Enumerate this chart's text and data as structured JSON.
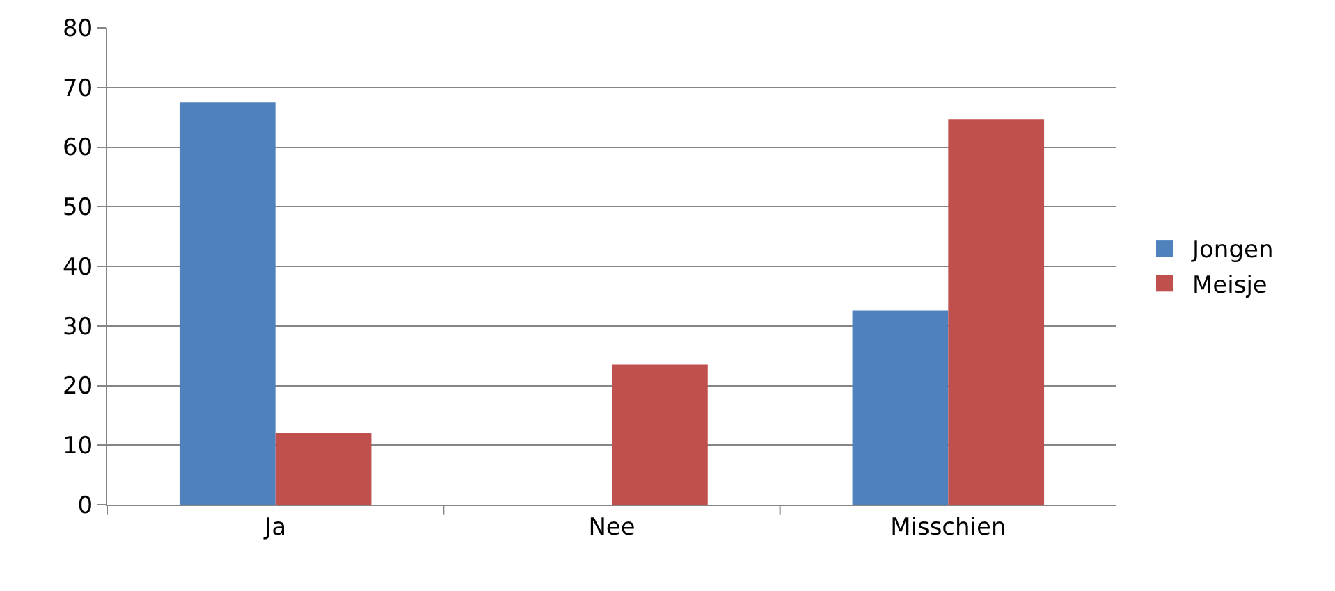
{
  "chart_data": {
    "type": "bar",
    "categories": [
      "Ja",
      "Nee",
      "Misschien"
    ],
    "series": [
      {
        "name": "Jongen",
        "color": "#4f81bd",
        "values": [
          67.5,
          0,
          32.6
        ]
      },
      {
        "name": "Meisje",
        "color": "#c0504d",
        "values": [
          12,
          23.5,
          64.7
        ]
      }
    ],
    "ylim": [
      0,
      80
    ],
    "yticks": [
      0,
      10,
      20,
      30,
      40,
      50,
      60,
      70,
      80
    ],
    "grid": "y",
    "legend": "right"
  }
}
